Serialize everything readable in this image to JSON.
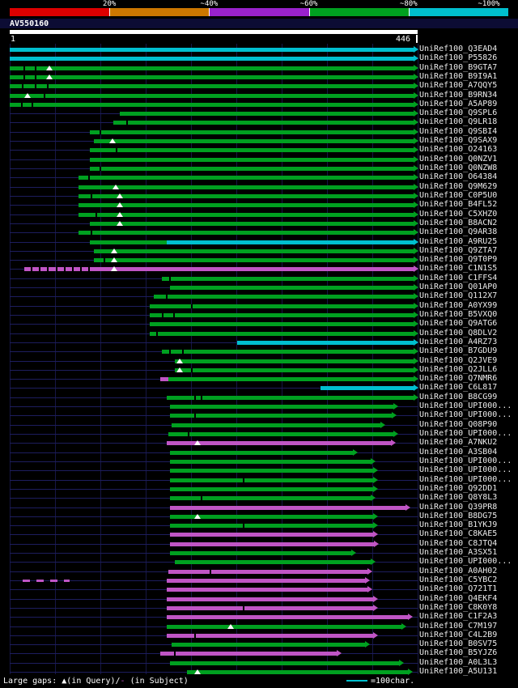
{
  "palette": {
    "green": "#00a020",
    "cyan": "#00bfcf",
    "magenta": "#c055c5",
    "red": "#dd0000",
    "orange": "#cc7700",
    "purple": "#9922cc",
    "navy": "#1d1d5e",
    "grid": "#161645",
    "white": "#ffffff"
  },
  "footer": {
    "prefix": "Large gaps: ",
    "query_gap_symbol": "▲",
    "mid": "(in Query)/",
    "subject_gap_symbol": "-",
    "suffix": " (in Subject)",
    "scale_label": "=100char."
  },
  "chart_data": {
    "type": "bar",
    "subtype": "blast-alignment-overview",
    "query": {
      "name": "AV550160",
      "length": 446,
      "start_label": "1",
      "end_label": "446"
    },
    "identity_scale": [
      {
        "label": "20%",
        "color": "#dd0000"
      },
      {
        "label": "~40%",
        "color": "#cc7700"
      },
      {
        "label": "~60%",
        "color": "#9922cc"
      },
      {
        "label": "~80%",
        "color": "#00a020"
      },
      {
        "label": "~100%",
        "color": "#00bfcf"
      }
    ],
    "alignments": [
      {
        "label": "UniRef100_Q3EAD4",
        "color": "cyan",
        "start": 1,
        "end": 446
      },
      {
        "label": "UniRef100_P55826",
        "color": "cyan",
        "start": 1,
        "end": 446
      },
      {
        "label": "UniRef100_B9GTA7",
        "color": "green",
        "start": 1,
        "end": 446,
        "tris": [
          44
        ],
        "ticks": [
          16,
          28
        ]
      },
      {
        "label": "UniRef100_B9I9A1",
        "color": "green",
        "start": 1,
        "end": 446,
        "tris": [
          44
        ],
        "ticks": [
          16,
          28
        ]
      },
      {
        "label": "UniRef100_A7QQY5",
        "color": "green",
        "start": 1,
        "end": 446,
        "ticks": [
          14,
          28,
          42
        ]
      },
      {
        "label": "UniRef100_B9RN34",
        "color": "green",
        "start": 1,
        "end": 446,
        "tris": [
          20
        ],
        "ticks": [
          38
        ]
      },
      {
        "label": "UniRef100_A5AP89",
        "color": "green",
        "start": 1,
        "end": 446,
        "ticks": [
          13,
          25
        ]
      },
      {
        "label": "UniRef100_Q9SPL6",
        "color": "green",
        "start": 121,
        "end": 446
      },
      {
        "label": "UniRef100_Q9LR18",
        "color": "green",
        "start": 114,
        "end": 446,
        "ticks": [
          128
        ]
      },
      {
        "label": "UniRef100_Q9SBI4",
        "color": "green",
        "start": 88,
        "end": 446,
        "ticks": [
          99
        ]
      },
      {
        "label": "UniRef100_Q9SAX9",
        "color": "green",
        "start": 93,
        "end": 446,
        "tris": [
          113
        ]
      },
      {
        "label": "UniRef100_O24163",
        "color": "green",
        "start": 88,
        "end": 446,
        "ticks": [
          117
        ]
      },
      {
        "label": "UniRef100_Q0NZV1",
        "color": "green",
        "start": 88,
        "end": 446
      },
      {
        "label": "UniRef100_Q0NZW8",
        "color": "green",
        "start": 88,
        "end": 446,
        "ticks": [
          99
        ]
      },
      {
        "label": "UniRef100_O64384",
        "color": "green",
        "start": 76,
        "end": 446,
        "ticks": [
          87
        ]
      },
      {
        "label": "UniRef100_Q9M629",
        "color": "green",
        "start": 76,
        "end": 446,
        "tris": [
          117
        ]
      },
      {
        "label": "UniRef100_C0P5U0",
        "color": "green",
        "start": 76,
        "end": 446,
        "tris": [
          121
        ],
        "ticks": [
          89
        ]
      },
      {
        "label": "UniRef100_B4FL52",
        "color": "green",
        "start": 76,
        "end": 446,
        "tris": [
          121
        ]
      },
      {
        "label": "UniRef100_C5XHZ0",
        "color": "green",
        "start": 76,
        "end": 446,
        "tris": [
          121
        ],
        "ticks": [
          95
        ]
      },
      {
        "label": "UniRef100_B8ACN2",
        "color": "green",
        "start": 88,
        "end": 446,
        "tris": [
          121
        ]
      },
      {
        "label": "UniRef100_Q9AR38",
        "color": "green",
        "start": 76,
        "end": 446,
        "ticks": [
          89
        ]
      },
      {
        "label": "UniRef100_A9RU25",
        "segments": [
          {
            "color": "green",
            "start": 88,
            "end": 172
          },
          {
            "color": "cyan",
            "start": 172,
            "end": 446
          }
        ]
      },
      {
        "label": "UniRef100_Q9ZTA7",
        "color": "green",
        "start": 93,
        "end": 446,
        "tris": [
          115
        ]
      },
      {
        "label": "UniRef100_Q9T0P9",
        "color": "green",
        "start": 93,
        "end": 446,
        "tris": [
          115
        ],
        "ticks": [
          103
        ]
      },
      {
        "label": "UniRef100_C1N1S5",
        "color": "magenta",
        "start": 17,
        "end": 446,
        "tris": [
          115
        ],
        "ticks": [
          24,
          33,
          42,
          51,
          60,
          69,
          78,
          87
        ]
      },
      {
        "label": "UniRef100_C1FFS4",
        "color": "green",
        "start": 167,
        "end": 446,
        "ticks": [
          175
        ]
      },
      {
        "label": "UniRef100_Q01AP0",
        "color": "green",
        "start": 176,
        "end": 446
      },
      {
        "label": "UniRef100_Q112X7",
        "color": "green",
        "start": 158,
        "end": 446,
        "ticks": [
          171
        ]
      },
      {
        "label": "UniRef100_A0YX99",
        "color": "green",
        "start": 154,
        "end": 446,
        "ticks": [
          199
        ]
      },
      {
        "label": "UniRef100_B5VXQ0",
        "color": "green",
        "start": 154,
        "end": 446,
        "ticks": [
          167,
          179
        ]
      },
      {
        "label": "UniRef100_Q9ATG6",
        "color": "green",
        "start": 154,
        "end": 446
      },
      {
        "label": "UniRef100_Q8DLV2",
        "color": "green",
        "start": 154,
        "end": 446,
        "ticks": [
          161
        ]
      },
      {
        "label": "UniRef100_A4RZ73",
        "color": "cyan",
        "start": 249,
        "end": 446
      },
      {
        "label": "UniRef100_B7GDU9",
        "color": "green",
        "start": 167,
        "end": 446,
        "ticks": [
          175,
          189
        ]
      },
      {
        "label": "UniRef100_Q2JVE9",
        "color": "green",
        "start": 181,
        "end": 446,
        "tris": [
          186
        ]
      },
      {
        "label": "UniRef100_Q2JLL6",
        "color": "green",
        "start": 181,
        "end": 446,
        "tris": [
          186
        ],
        "ticks": [
          199
        ]
      },
      {
        "label": "UniRef100_Q7NMR6",
        "segments": [
          {
            "color": "magenta",
            "start": 165,
            "end": 174
          },
          {
            "color": "green",
            "start": 174,
            "end": 446
          }
        ]
      },
      {
        "label": "UniRef100_C6L817",
        "color": "cyan",
        "start": 340,
        "end": 446
      },
      {
        "label": "UniRef100_B8CG99",
        "color": "green",
        "start": 172,
        "end": 446,
        "ticks": [
          202,
          209
        ]
      },
      {
        "label": "UniRef100_UPI000...",
        "color": "green",
        "start": 176,
        "end": 424
      },
      {
        "label": "UniRef100_UPI000...",
        "color": "green",
        "start": 176,
        "end": 422,
        "ticks": [
          202
        ]
      },
      {
        "label": "UniRef100_Q08P90",
        "color": "green",
        "start": 178,
        "end": 410
      },
      {
        "label": "UniRef100_UPI000...",
        "color": "green",
        "start": 174,
        "end": 424,
        "ticks": [
          195
        ]
      },
      {
        "label": "UniRef100_A7NKU2",
        "color": "magenta",
        "start": 172,
        "end": 421,
        "tris": [
          206
        ]
      },
      {
        "label": "UniRef100_A3SB04",
        "color": "green",
        "start": 176,
        "end": 380
      },
      {
        "label": "UniRef100_UPI000...",
        "color": "green",
        "start": 176,
        "end": 399
      },
      {
        "label": "UniRef100_UPI000...",
        "color": "green",
        "start": 176,
        "end": 402
      },
      {
        "label": "UniRef100_UPI000...",
        "color": "green",
        "start": 176,
        "end": 402,
        "ticks": [
          255
        ]
      },
      {
        "label": "UniRef100_Q92DD1",
        "color": "green",
        "start": 176,
        "end": 402
      },
      {
        "label": "UniRef100_Q8Y8L3",
        "color": "green",
        "start": 176,
        "end": 399,
        "ticks": [
          209
        ]
      },
      {
        "label": "UniRef100_Q39PR8",
        "color": "magenta",
        "start": 176,
        "end": 437
      },
      {
        "label": "UniRef100_B8DG75",
        "color": "green",
        "start": 176,
        "end": 402,
        "tris": [
          206
        ]
      },
      {
        "label": "UniRef100_B1YKJ9",
        "color": "green",
        "start": 176,
        "end": 402,
        "ticks": [
          255
        ]
      },
      {
        "label": "UniRef100_C8KAE5",
        "color": "magenta",
        "start": 176,
        "end": 402
      },
      {
        "label": "UniRef100_C8JTQ4",
        "color": "magenta",
        "start": 176,
        "end": 403
      },
      {
        "label": "UniRef100_A3SX51",
        "color": "green",
        "start": 176,
        "end": 378
      },
      {
        "label": "UniRef100_UPI000...",
        "color": "green",
        "start": 181,
        "end": 399
      },
      {
        "label": "UniRef100_A0AH02",
        "color": "magenta",
        "start": 174,
        "end": 396,
        "ticks": [
          219
        ]
      },
      {
        "label": "UniRef100_C5YBC2",
        "color": "magenta",
        "start": 172,
        "end": 393,
        "dashes": [
          [
            15,
            23
          ],
          [
            30,
            38
          ],
          [
            45,
            53
          ],
          [
            60,
            66
          ]
        ]
      },
      {
        "label": "UniRef100_Q721T1",
        "color": "magenta",
        "start": 172,
        "end": 396
      },
      {
        "label": "UniRef100_Q4EKF4",
        "color": "magenta",
        "start": 172,
        "end": 402
      },
      {
        "label": "UniRef100_C8K0Y8",
        "color": "magenta",
        "start": 172,
        "end": 402,
        "ticks": [
          255
        ]
      },
      {
        "label": "UniRef100_C1F2A3",
        "color": "magenta",
        "start": 172,
        "end": 440
      },
      {
        "label": "UniRef100_C7M197",
        "color": "green",
        "start": 172,
        "end": 433,
        "tris": [
          242
        ]
      },
      {
        "label": "UniRef100_C4L2B9",
        "color": "magenta",
        "start": 172,
        "end": 402,
        "ticks": [
          202
        ]
      },
      {
        "label": "UniRef100_B0SV75",
        "color": "green",
        "start": 178,
        "end": 393
      },
      {
        "label": "UniRef100_B5YJZ6",
        "color": "magenta",
        "start": 165,
        "end": 362,
        "ticks": [
          180
        ]
      },
      {
        "label": "UniRef100_A0L3L3",
        "color": "green",
        "start": 176,
        "end": 430
      },
      {
        "label": "UniRef100_A5U131",
        "color": "green",
        "start": 194,
        "end": 440,
        "tris": [
          206
        ]
      }
    ]
  }
}
